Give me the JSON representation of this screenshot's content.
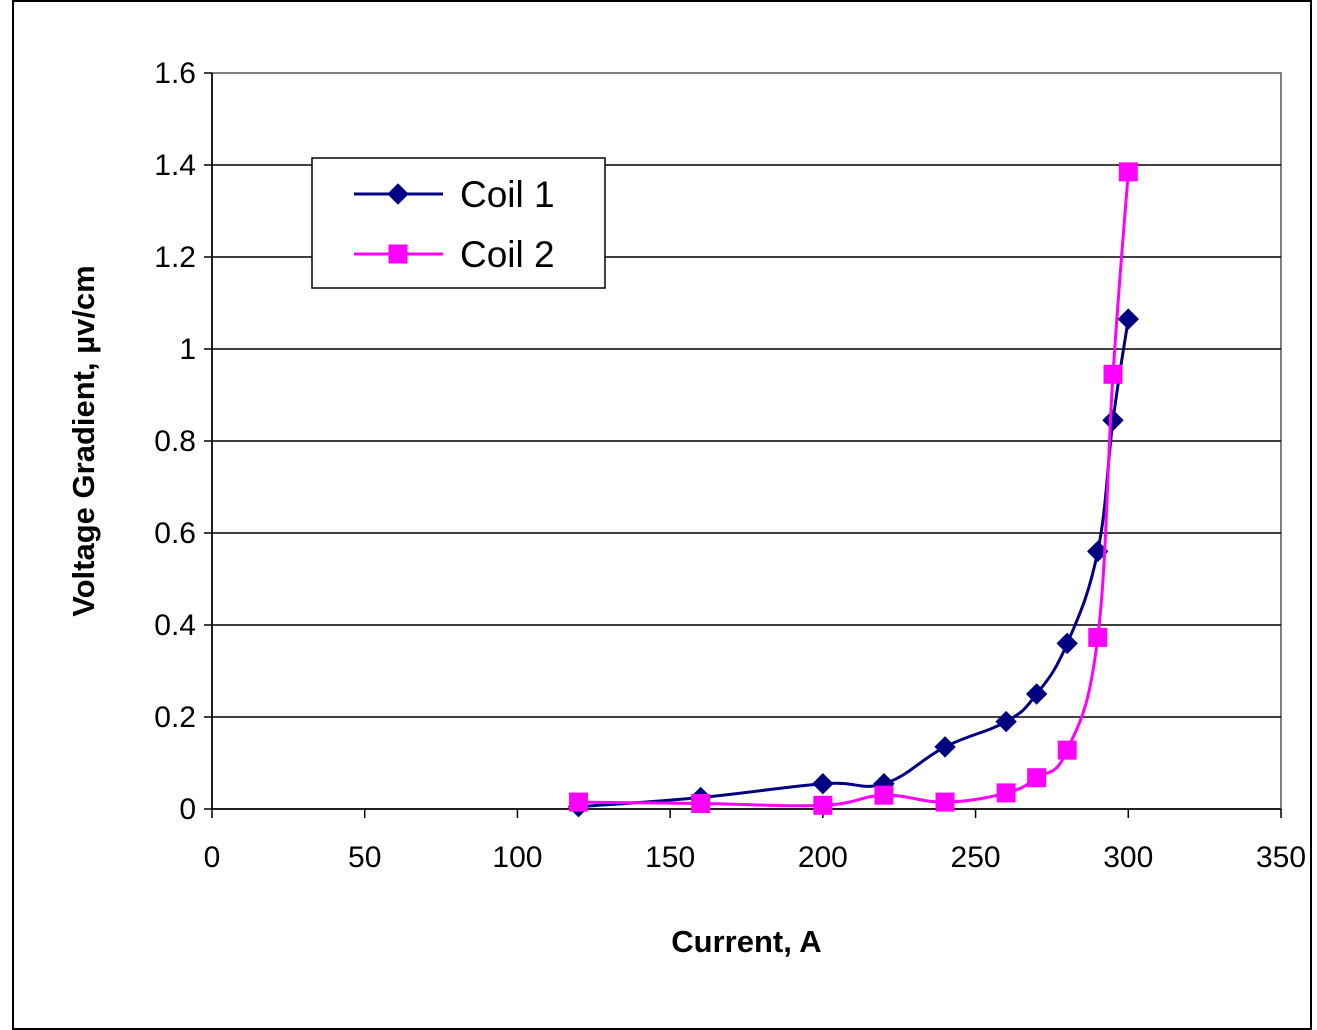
{
  "chart_data": {
    "type": "line",
    "title": "",
    "xlabel": "Current, A",
    "ylabel": "Voltage Gradient, µv/cm",
    "xlim": [
      0,
      350
    ],
    "ylim": [
      0,
      1.6
    ],
    "x_ticks": [
      "0",
      "50",
      "100",
      "150",
      "200",
      "250",
      "300",
      "350"
    ],
    "y_ticks": [
      "0",
      "0.2",
      "0.4",
      "0.6",
      "0.8",
      "1",
      "1.2",
      "1.4",
      "1.6"
    ],
    "grid": "horizontal",
    "legend_position": "top-left",
    "series": [
      {
        "name": "Coil 1",
        "color": "#000080",
        "marker": "diamond",
        "x": [
          120,
          160,
          200,
          220,
          240,
          260,
          270,
          280,
          290,
          295,
          300
        ],
        "y": [
          0.005,
          0.025,
          0.055,
          0.055,
          0.135,
          0.19,
          0.25,
          0.36,
          0.56,
          0.845,
          1.065
        ]
      },
      {
        "name": "Coil 2",
        "color": "#FF00FF",
        "marker": "square",
        "x": [
          120,
          160,
          200,
          220,
          240,
          260,
          270,
          280,
          290,
          295,
          300
        ],
        "y": [
          0.015,
          0.012,
          0.008,
          0.03,
          0.015,
          0.035,
          0.068,
          0.128,
          0.373,
          0.945,
          1.385
        ]
      }
    ]
  }
}
